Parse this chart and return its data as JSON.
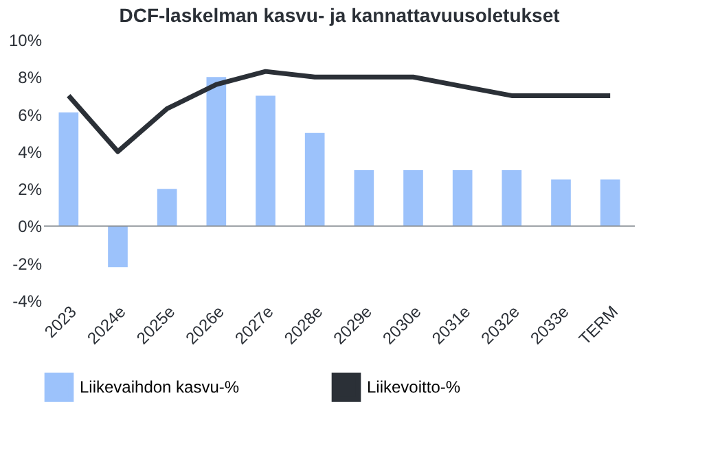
{
  "chart_data": {
    "type": "bar",
    "title": "DCF-laskelman kasvu- ja kannattavuusoletukset",
    "categories": [
      "2023",
      "2024e",
      "2025e",
      "2026e",
      "2027e",
      "2028e",
      "2029e",
      "2030e",
      "2031e",
      "2032e",
      "2033e",
      "TERM"
    ],
    "series": [
      {
        "name": "Liikevaihdon kasvu-%",
        "color": "#9cc2fb",
        "values": [
          6.1,
          -2.2,
          2.0,
          8.0,
          7.0,
          5.0,
          3.0,
          3.0,
          3.0,
          3.0,
          2.5,
          2.5
        ]
      },
      {
        "name": "Liikevoitto-%",
        "type": "line",
        "color": "#2b3037",
        "values": [
          7.0,
          4.0,
          6.3,
          7.6,
          8.3,
          8.0,
          8.0,
          8.0,
          7.5,
          7.0,
          7.0,
          7.0
        ]
      }
    ],
    "ylim": [
      -4,
      10
    ],
    "yticks": [
      {
        "value": -4,
        "label": "-4%"
      },
      {
        "value": -2,
        "label": "-2%"
      },
      {
        "value": 0,
        "label": "0%"
      },
      {
        "value": 2,
        "label": "2%"
      },
      {
        "value": 4,
        "label": "4%"
      },
      {
        "value": 6,
        "label": "6%"
      },
      {
        "value": 8,
        "label": "8%"
      },
      {
        "value": 10,
        "label": "10%"
      }
    ],
    "ref_lines": [
      {
        "axis": "y",
        "value": 0,
        "color": "#8a9096",
        "line_style": "solid"
      }
    ],
    "grid": false,
    "legend": "bottom",
    "marker": "none",
    "line_style": "solid"
  }
}
